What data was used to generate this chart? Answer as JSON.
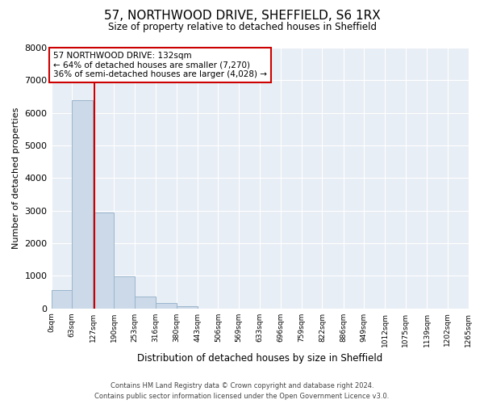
{
  "title": "57, NORTHWOOD DRIVE, SHEFFIELD, S6 1RX",
  "subtitle": "Size of property relative to detached houses in Sheffield",
  "xlabel": "Distribution of detached houses by size in Sheffield",
  "ylabel": "Number of detached properties",
  "bar_color": "#ccd9e8",
  "bar_edge_color": "#9ab5cc",
  "bin_edges": [
    0,
    63,
    127,
    190,
    253,
    316,
    380,
    443,
    506,
    569,
    633,
    696,
    759,
    822,
    886,
    949,
    1012,
    1075,
    1139,
    1202,
    1265
  ],
  "bin_labels": [
    "0sqm",
    "63sqm",
    "127sqm",
    "190sqm",
    "253sqm",
    "316sqm",
    "380sqm",
    "443sqm",
    "506sqm",
    "569sqm",
    "633sqm",
    "696sqm",
    "759sqm",
    "822sqm",
    "886sqm",
    "949sqm",
    "1012sqm",
    "1075sqm",
    "1139sqm",
    "1202sqm",
    "1265sqm"
  ],
  "counts": [
    560,
    6400,
    2950,
    980,
    370,
    160,
    70,
    0,
    0,
    0,
    0,
    0,
    0,
    0,
    0,
    0,
    0,
    0,
    0,
    0
  ],
  "property_size": 132,
  "property_line_color": "#cc0000",
  "annotation_title": "57 NORTHWOOD DRIVE: 132sqm",
  "annotation_line1": "← 64% of detached houses are smaller (7,270)",
  "annotation_line2": "36% of semi-detached houses are larger (4,028) →",
  "annotation_box_color": "#cc0000",
  "ylim": [
    0,
    8000
  ],
  "yticks": [
    0,
    1000,
    2000,
    3000,
    4000,
    5000,
    6000,
    7000,
    8000
  ],
  "footer_line1": "Contains HM Land Registry data © Crown copyright and database right 2024.",
  "footer_line2": "Contains public sector information licensed under the Open Government Licence v3.0.",
  "bg_color": "#ffffff",
  "plot_bg_color": "#e8eef5"
}
